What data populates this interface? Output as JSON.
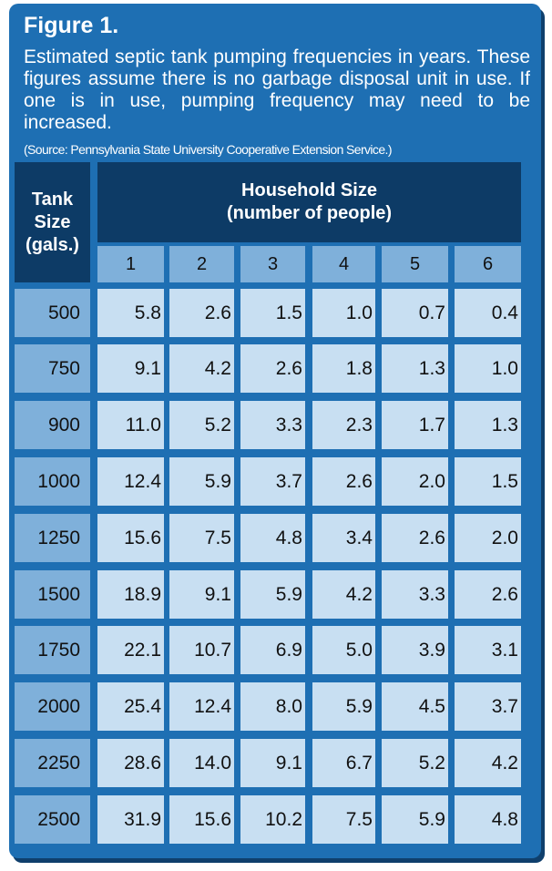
{
  "figure": {
    "title": "Figure 1.",
    "caption": "Estimated septic tank pumping frequencies in years. These figures assume there is no garbage disposal unit in use. If one is in use, pumping frequency may need to be increased.",
    "source": "(Source: Pennsylvania State University Cooperative Extension Service.)"
  },
  "table": {
    "corner_header": [
      "Tank",
      "Size",
      "(gals.)"
    ],
    "group_header": [
      "Household Size",
      "(number of people)"
    ],
    "columns": [
      "1",
      "2",
      "3",
      "4",
      "5",
      "6"
    ],
    "rows": [
      {
        "tank": "500",
        "values": [
          "5.8",
          "2.6",
          "1.5",
          "1.0",
          "0.7",
          "0.4"
        ]
      },
      {
        "tank": "750",
        "values": [
          "9.1",
          "4.2",
          "2.6",
          "1.8",
          "1.3",
          "1.0"
        ]
      },
      {
        "tank": "900",
        "values": [
          "11.0",
          "5.2",
          "3.3",
          "2.3",
          "1.7",
          "1.3"
        ]
      },
      {
        "tank": "1000",
        "values": [
          "12.4",
          "5.9",
          "3.7",
          "2.6",
          "2.0",
          "1.5"
        ]
      },
      {
        "tank": "1250",
        "values": [
          "15.6",
          "7.5",
          "4.8",
          "3.4",
          "2.6",
          "2.0"
        ]
      },
      {
        "tank": "1500",
        "values": [
          "18.9",
          "9.1",
          "5.9",
          "4.2",
          "3.3",
          "2.6"
        ]
      },
      {
        "tank": "1750",
        "values": [
          "22.1",
          "10.7",
          "6.9",
          "5.0",
          "3.9",
          "3.1"
        ]
      },
      {
        "tank": "2000",
        "values": [
          "25.4",
          "12.4",
          "8.0",
          "5.9",
          "4.5",
          "3.7"
        ]
      },
      {
        "tank": "2250",
        "values": [
          "28.6",
          "14.0",
          "9.1",
          "6.7",
          "5.2",
          "4.2"
        ]
      },
      {
        "tank": "2500",
        "values": [
          "31.9",
          "15.6",
          "10.2",
          "7.5",
          "5.9",
          "4.8"
        ]
      }
    ]
  },
  "colors": {
    "panel": "#1e6fb3",
    "header_dark": "#0d3b66",
    "header_light": "#7fb0da",
    "cell": "#c8dff2"
  }
}
